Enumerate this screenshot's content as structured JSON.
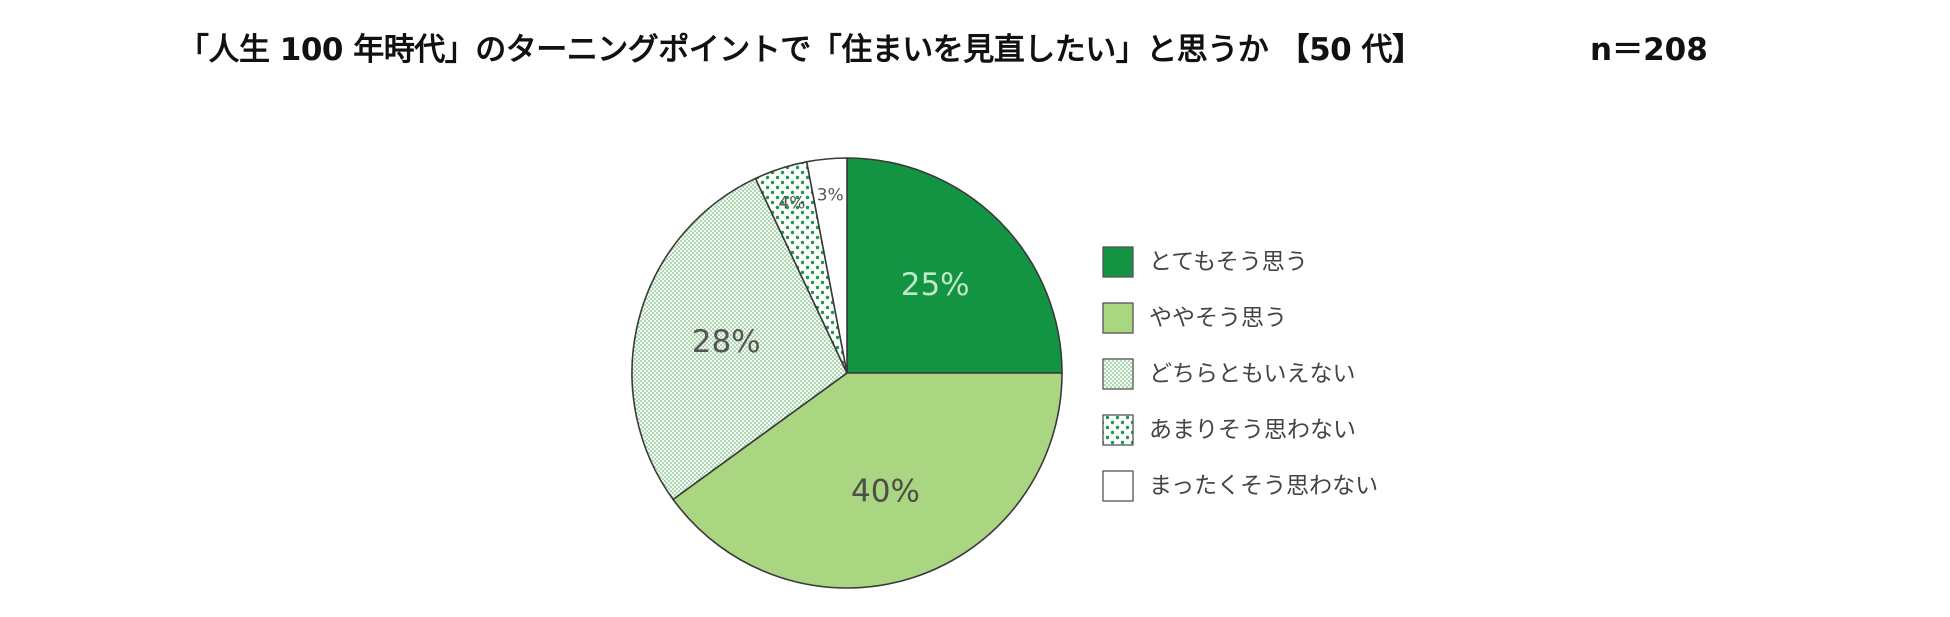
{
  "title": "「人生 100 年時代」のターニングポイントで「住まいを見直したい」と思うか 【50 代】",
  "sample_size": "n＝208",
  "chart_data": {
    "type": "pie",
    "start_angle_deg": 0,
    "direction": "clockwise",
    "slices": [
      {
        "label": "とてもそう思う",
        "value": 25,
        "display": "25%",
        "color": "#139443",
        "pattern": "solid",
        "label_color": "#bfe7c9"
      },
      {
        "label": "ややそう思う",
        "value": 40,
        "display": "40%",
        "color": "#aad581",
        "pattern": "solid",
        "label_color": "#4d4d4d"
      },
      {
        "label": "どちらともいえない",
        "value": 28,
        "display": "28%",
        "color": "#eef7ee",
        "pattern": "fine-dots",
        "label_color": "#555555"
      },
      {
        "label": "あまりそう思わない",
        "value": 4,
        "display": "4%",
        "color": "#ffffff",
        "pattern": "dots",
        "label_color": "#555555"
      },
      {
        "label": "まったくそう思わない",
        "value": 3,
        "display": "3%",
        "color": "#ffffff",
        "pattern": "none",
        "label_color": "#555555"
      }
    ],
    "legend_position": "right"
  }
}
